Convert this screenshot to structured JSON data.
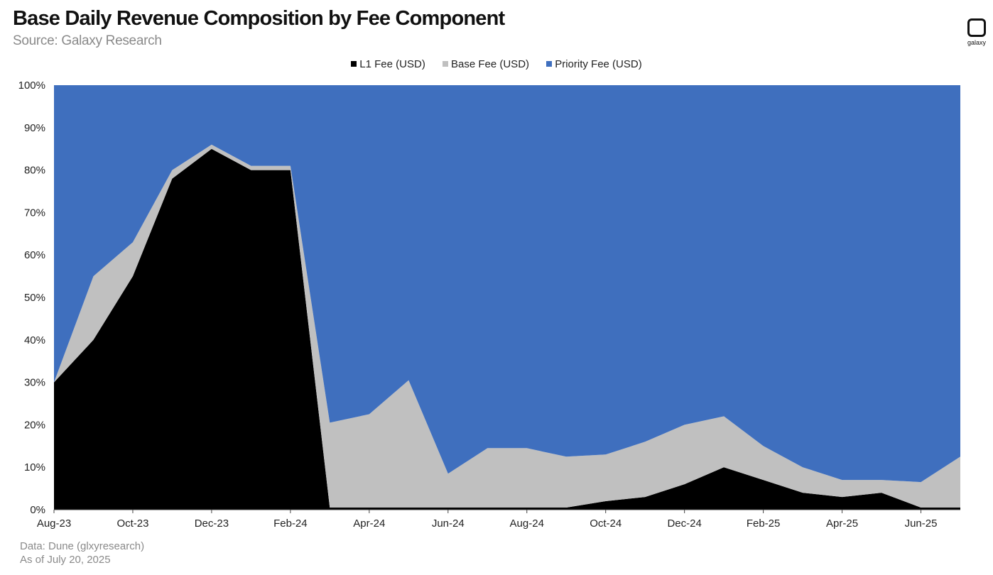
{
  "header": {
    "title": "Base Daily Revenue Composition by Fee Component",
    "subtitle": "Source: Galaxy Research",
    "logo_text": "galaxy"
  },
  "footer": {
    "line1": "Data: Dune (glxyresearch)",
    "line2": "As of July 20, 2025"
  },
  "chart_data": {
    "type": "area",
    "stacked": "percent",
    "ylim": [
      0,
      100
    ],
    "y_ticks": [
      "0%",
      "10%",
      "20%",
      "30%",
      "40%",
      "50%",
      "60%",
      "70%",
      "80%",
      "90%",
      "100%"
    ],
    "x_ticks": [
      "Aug-23",
      "Oct-23",
      "Dec-23",
      "Feb-24",
      "Apr-24",
      "Jun-24",
      "Aug-24",
      "Oct-24",
      "Dec-24",
      "Feb-25",
      "Apr-25",
      "Jun-25"
    ],
    "legend_position": "top",
    "x_unit": "month",
    "x": [
      "Aug-23",
      "Sep-23",
      "Oct-23",
      "Nov-23",
      "Dec-23",
      "Jan-24",
      "Feb-24",
      "Mar-24",
      "Apr-24",
      "May-24",
      "Jun-24",
      "Jul-24",
      "Aug-24",
      "Sep-24",
      "Oct-24",
      "Nov-24",
      "Dec-24",
      "Jan-25",
      "Feb-25",
      "Mar-25",
      "Apr-25",
      "May-25",
      "Jun-25",
      "Jul-25"
    ],
    "series": [
      {
        "name": "L1 Fee (USD)",
        "color": "#000000",
        "values": [
          30,
          40,
          55,
          78,
          85,
          80,
          80,
          0.5,
          0.5,
          0.5,
          0.5,
          0.5,
          0.5,
          0.5,
          2,
          3,
          6,
          10,
          7,
          4,
          3,
          4,
          0.5,
          0.5
        ]
      },
      {
        "name": "Base Fee (USD)",
        "color": "#c0c0c0",
        "values": [
          0,
          15,
          8,
          2,
          1,
          1,
          1,
          20,
          22,
          30,
          8,
          14,
          14,
          12,
          11,
          13,
          14,
          12,
          8,
          6,
          4,
          3,
          6,
          12
        ]
      },
      {
        "name": "Priority Fee (USD)",
        "color": "#3f6fbe",
        "values": [
          70,
          45,
          37,
          20,
          14,
          19,
          19,
          79.5,
          77.5,
          69.5,
          91.5,
          85.5,
          85.5,
          87.5,
          87,
          84,
          80,
          78,
          85,
          90,
          93,
          93,
          93.5,
          87.5
        ]
      }
    ]
  }
}
